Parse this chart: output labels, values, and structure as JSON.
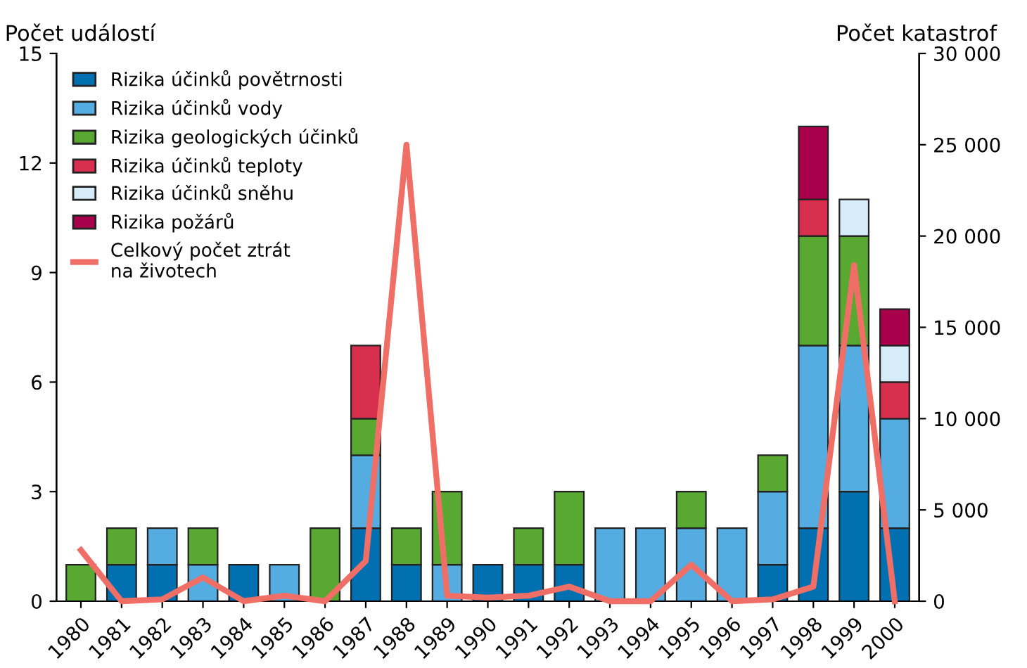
{
  "chart_data": {
    "type": "bar",
    "stacked": true,
    "ylabel": "Počet událostí",
    "y2label": "Počet katastrof",
    "categories": [
      "1980",
      "1981",
      "1982",
      "1983",
      "1984",
      "1985",
      "1986",
      "1987",
      "1988",
      "1989",
      "1990",
      "1991",
      "1992",
      "1993",
      "1994",
      "1995",
      "1996",
      "1997",
      "1998",
      "1999",
      "2000"
    ],
    "series": [
      {
        "name": "Rizika účinků povětrnosti",
        "color": "#0070b0",
        "values": [
          0,
          1,
          1,
          0,
          1,
          0,
          0,
          2,
          1,
          0,
          1,
          1,
          1,
          0,
          0,
          0,
          0,
          1,
          2,
          3,
          2
        ]
      },
      {
        "name": "Rizika účinků vody",
        "color": "#55ace0",
        "values": [
          0,
          0,
          1,
          1,
          0,
          1,
          0,
          2,
          0,
          1,
          0,
          0,
          0,
          2,
          2,
          2,
          2,
          2,
          5,
          4,
          3
        ]
      },
      {
        "name": "Rizika geologických účinků",
        "color": "#58a832",
        "values": [
          1,
          1,
          0,
          1,
          0,
          0,
          2,
          1,
          1,
          2,
          0,
          1,
          2,
          0,
          0,
          1,
          0,
          1,
          3,
          3,
          0
        ]
      },
      {
        "name": "Rizika účinků teploty",
        "color": "#d92f4e",
        "values": [
          0,
          0,
          0,
          0,
          0,
          0,
          0,
          2,
          0,
          0,
          0,
          0,
          0,
          0,
          0,
          0,
          0,
          0,
          1,
          0,
          1
        ]
      },
      {
        "name": "Rizika účinků sněhu",
        "color": "#d6ecf9",
        "values": [
          0,
          0,
          0,
          0,
          0,
          0,
          0,
          0,
          0,
          0,
          0,
          0,
          0,
          0,
          0,
          0,
          0,
          0,
          0,
          1,
          1
        ]
      },
      {
        "name": "Rizika požárů",
        "color": "#a8004a",
        "values": [
          0,
          0,
          0,
          0,
          0,
          0,
          0,
          0,
          0,
          0,
          0,
          0,
          0,
          0,
          0,
          0,
          0,
          0,
          2,
          0,
          1
        ]
      },
      {
        "name": "Celkový počet ztrát\nna životech",
        "type": "line",
        "axis": "y2",
        "color": "#ef6f66",
        "values": [
          2800,
          0,
          100,
          1300,
          0,
          300,
          0,
          2200,
          25000,
          300,
          200,
          300,
          800,
          0,
          0,
          2000,
          0,
          100,
          800,
          18400,
          0
        ]
      }
    ],
    "ylim": [
      0,
      15
    ],
    "yticks": [
      0,
      3,
      6,
      9,
      12,
      15
    ],
    "y2lim": [
      0,
      30000
    ],
    "y2ticks": [
      0,
      {
        "value": 5000,
        "label": "5 000"
      },
      {
        "value": 10000,
        "label": "10 000"
      },
      {
        "value": 15000,
        "label": "15 000"
      },
      {
        "value": 20000,
        "label": "20 000"
      },
      {
        "value": 25000,
        "label": "25 000"
      },
      {
        "value": 30000,
        "label": "30 000"
      }
    ],
    "grid": false,
    "legend": "top left",
    "line_style": "solid",
    "marker": "none"
  }
}
